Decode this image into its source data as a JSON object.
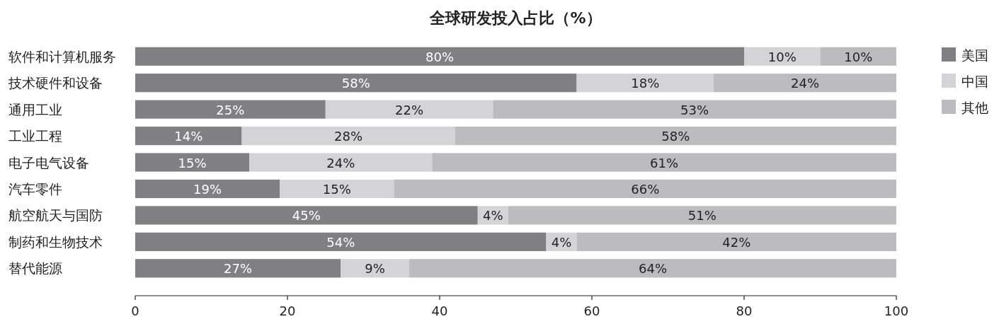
{
  "chart_data": {
    "type": "bar",
    "orientation": "horizontal",
    "stacked": true,
    "title": "全球研发投入占比（%）",
    "categories": [
      "软件和计算机服务",
      "技术硬件和设备",
      "通用工业",
      "工业工程",
      "电子电气设备",
      "汽车零件",
      "航空航天与国防",
      "制药和生物技术",
      "替代能源"
    ],
    "series": [
      {
        "name": "美国",
        "color": "#808083",
        "values": [
          80,
          58,
          25,
          14,
          15,
          19,
          45,
          54,
          27
        ],
        "value_labels": [
          "80%",
          "58%",
          "25%",
          "14%",
          "15%",
          "19%",
          "45%",
          "54%",
          "27%"
        ]
      },
      {
        "name": "中国",
        "color": "#d4d4d6",
        "values": [
          10,
          18,
          22,
          28,
          24,
          15,
          4,
          4,
          9
        ],
        "value_labels": [
          "10%",
          "18%",
          "22%",
          "28%",
          "24%",
          "15%",
          "4%",
          "4%",
          "9%"
        ]
      },
      {
        "name": "其他",
        "color": "#bcbcbf",
        "values": [
          10,
          24,
          53,
          58,
          61,
          66,
          51,
          42,
          64
        ],
        "value_labels": [
          "10%",
          "24%",
          "53%",
          "58%",
          "61%",
          "66%",
          "51%",
          "42%",
          "64%"
        ]
      }
    ],
    "xlim": [
      0,
      100
    ],
    "xticks": [
      0,
      20,
      40,
      60,
      80,
      100
    ],
    "grid": false,
    "legend": "top right"
  }
}
